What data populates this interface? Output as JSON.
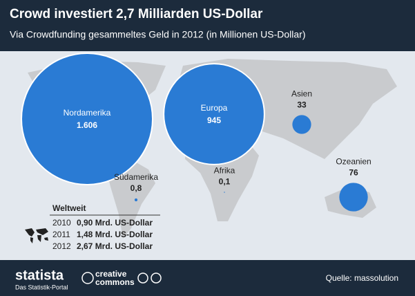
{
  "chart_data": {
    "type": "bubble",
    "title": "Crowd investiert 2,7 Milliarden US-Dollar",
    "subtitle": "Via Crowdfunding gesammeltes Geld in 2012 (in Millionen US-Dollar)",
    "categories": [
      "Nordamerika",
      "Europa",
      "Südamerika",
      "Afrika",
      "Asien",
      "Ozeanien"
    ],
    "values": [
      1606,
      945,
      0.8,
      0.1,
      33,
      76
    ],
    "value_labels": [
      "1.606",
      "945",
      "0,8",
      "0,1",
      "33",
      "76"
    ],
    "color": "#2a7bd4",
    "table": {
      "title": "Weltweit",
      "rows": [
        [
          "2010",
          "0,90 Mrd. US-Dollar"
        ],
        [
          "2011",
          "1,48 Mrd. US-Dollar"
        ],
        [
          "2012",
          "2,67 Mrd. US-Dollar"
        ]
      ]
    },
    "footer": {
      "brand": "statista",
      "tagline": "Das Statistik-Portal",
      "license_1": "creative",
      "license_2": "commons",
      "source": "Quelle: massolution"
    }
  }
}
